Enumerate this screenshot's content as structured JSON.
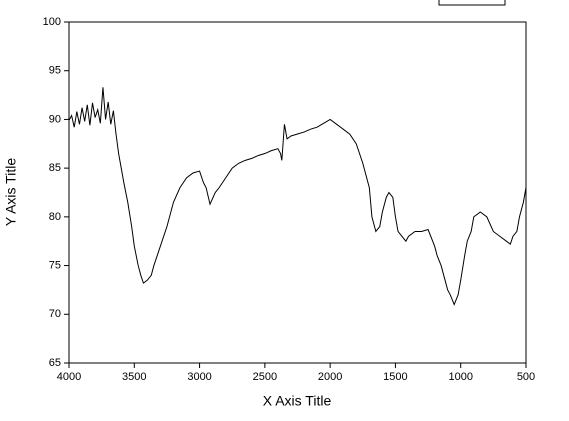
{
  "chart_data": {
    "type": "line",
    "x_label": "X Axis Title",
    "y_label": "Y Axis Title",
    "x": [
      4000,
      3980,
      3960,
      3940,
      3920,
      3900,
      3880,
      3860,
      3840,
      3820,
      3800,
      3780,
      3760,
      3740,
      3720,
      3700,
      3680,
      3660,
      3640,
      3620,
      3600,
      3580,
      3550,
      3520,
      3500,
      3470,
      3450,
      3430,
      3400,
      3370,
      3350,
      3300,
      3250,
      3200,
      3150,
      3100,
      3050,
      3000,
      2970,
      2950,
      2920,
      2880,
      2850,
      2800,
      2750,
      2700,
      2650,
      2600,
      2550,
      2500,
      2450,
      2400,
      2380,
      2370,
      2350,
      2330,
      2300,
      2250,
      2200,
      2150,
      2100,
      2050,
      2000,
      1950,
      1900,
      1850,
      1800,
      1750,
      1720,
      1700,
      1680,
      1660,
      1650,
      1620,
      1600,
      1570,
      1550,
      1520,
      1500,
      1480,
      1450,
      1420,
      1400,
      1350,
      1300,
      1250,
      1200,
      1180,
      1150,
      1120,
      1100,
      1080,
      1050,
      1020,
      1000,
      970,
      950,
      920,
      900,
      850,
      800,
      750,
      700,
      650,
      620,
      600,
      570,
      550,
      520,
      500
    ],
    "series": [
      {
        "color": "#000000",
        "values": [
          89.9,
          90.4,
          89.2,
          90.8,
          89.5,
          91.2,
          89.8,
          91.5,
          89.4,
          91.7,
          90.2,
          91.0,
          89.6,
          93.3,
          90.0,
          91.8,
          89.5,
          90.9,
          88.5,
          86.5,
          85.0,
          83.5,
          81.5,
          79.0,
          77.0,
          75.0,
          74.0,
          73.2,
          73.5,
          74.0,
          75.0,
          77.0,
          79.0,
          81.5,
          83.0,
          84.0,
          84.5,
          84.7,
          83.5,
          83.0,
          81.3,
          82.5,
          83.0,
          84.0,
          85.0,
          85.5,
          85.8,
          86.0,
          86.3,
          86.5,
          86.8,
          87.0,
          86.5,
          85.8,
          89.5,
          88.0,
          88.3,
          88.5,
          88.7,
          89.0,
          89.2,
          89.6,
          90.0,
          89.5,
          89.0,
          88.5,
          87.5,
          85.5,
          84.0,
          83.0,
          80.0,
          79.0,
          78.5,
          79.0,
          80.5,
          82.0,
          82.5,
          82.0,
          80.0,
          78.5,
          78.0,
          77.5,
          78.0,
          78.5,
          78.5,
          78.7,
          77.0,
          76.0,
          75.0,
          73.5,
          72.5,
          72.0,
          71.0,
          72.0,
          73.5,
          76.0,
          77.5,
          78.5,
          80.0,
          80.5,
          80.0,
          78.5,
          78.0,
          77.5,
          77.2,
          78.0,
          78.5,
          80.0,
          81.5,
          83.0
        ]
      }
    ],
    "xlim": [
      4000,
      500
    ],
    "ylim": [
      65,
      100
    ],
    "xticks": [
      4000,
      3500,
      3000,
      2500,
      2000,
      1500,
      1000,
      500
    ],
    "yticks": [
      65,
      70,
      75,
      80,
      85,
      90,
      95,
      100
    ]
  }
}
